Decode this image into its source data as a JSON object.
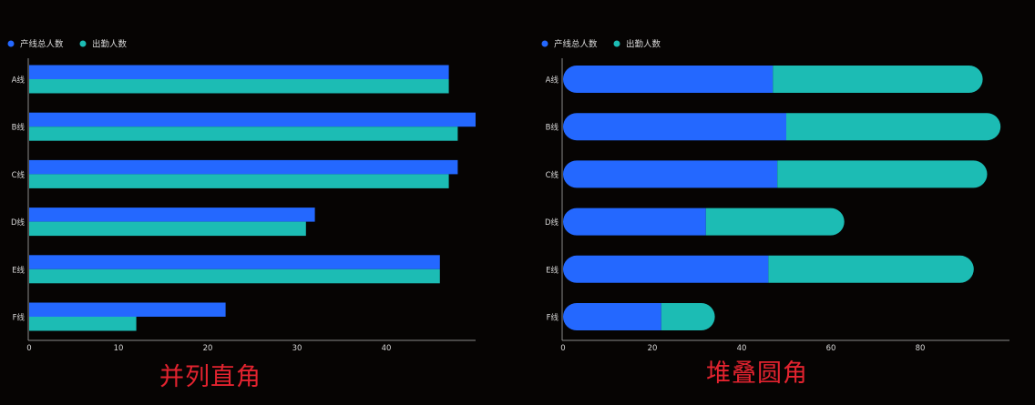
{
  "colors": {
    "total": "#2468ff",
    "present": "#1cbcb4",
    "axis": "#8a8a8a",
    "text": "#d8d8d8",
    "caption": "#e3232f"
  },
  "legend": {
    "total_label": "产线总人数",
    "present_label": "出勤人数"
  },
  "captions": {
    "left": "并列直角",
    "right": "堆叠圆角"
  },
  "chart_data": [
    {
      "type": "bar",
      "orientation": "horizontal",
      "mode": "grouped",
      "corner_style": "square",
      "categories": [
        "A线",
        "B线",
        "C线",
        "D线",
        "E线",
        "F线"
      ],
      "series": [
        {
          "name": "产线总人数",
          "values": [
            47,
            50,
            48,
            32,
            46,
            22
          ]
        },
        {
          "name": "出勤人数",
          "values": [
            47,
            48,
            47,
            31,
            46,
            12
          ]
        }
      ],
      "x_ticks": [
        0,
        10,
        20,
        30,
        40
      ],
      "xlim": [
        0,
        50
      ],
      "grid": false,
      "legend_position": "top-left"
    },
    {
      "type": "bar",
      "orientation": "horizontal",
      "mode": "stacked",
      "corner_style": "rounded",
      "categories": [
        "A线",
        "B线",
        "C线",
        "D线",
        "E线",
        "F线"
      ],
      "series": [
        {
          "name": "产线总人数",
          "values": [
            47,
            50,
            48,
            32,
            46,
            22
          ]
        },
        {
          "name": "出勤人数",
          "values": [
            47,
            48,
            47,
            31,
            46,
            12
          ]
        }
      ],
      "x_ticks": [
        0,
        20,
        40,
        60,
        80
      ],
      "xlim": [
        0,
        100
      ],
      "grid": false,
      "legend_position": "top-left"
    }
  ]
}
